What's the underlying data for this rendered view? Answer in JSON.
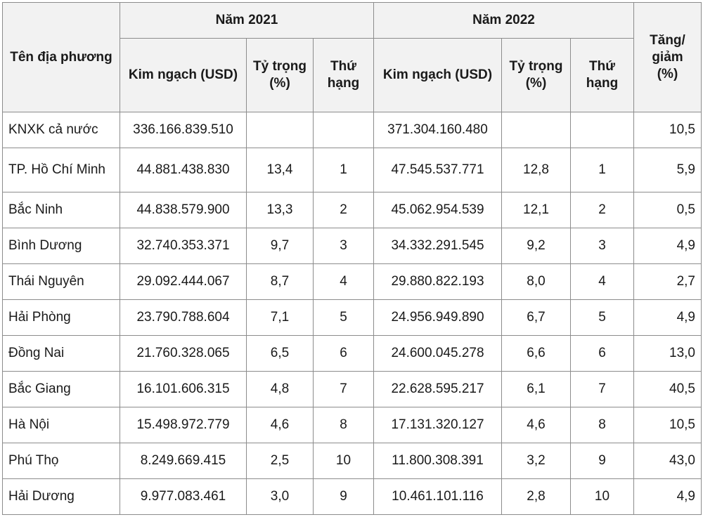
{
  "header": {
    "region_label": "Tên địa phương",
    "year1": "Năm 2021",
    "year2": "Năm 2022",
    "change_label": "Tăng/ giảm (%)",
    "turnover_label": "Kim ngạch (USD)",
    "share_label": "Tỷ trọng (%)",
    "rank_label": "Thứ hạng"
  },
  "rows": [
    {
      "name": "KNXK cả nước",
      "v2021": "336.166.839.510",
      "s2021": "",
      "r2021": "",
      "v2022": "371.304.160.480",
      "s2022": "",
      "r2022": "",
      "change": "10,5"
    },
    {
      "name": "TP. Hồ Chí Minh",
      "v2021": "44.881.438.830",
      "s2021": "13,4",
      "r2021": "1",
      "v2022": "47.545.537.771",
      "s2022": "12,8",
      "r2022": "1",
      "change": "5,9"
    },
    {
      "name": "Bắc Ninh",
      "v2021": "44.838.579.900",
      "s2021": "13,3",
      "r2021": "2",
      "v2022": "45.062.954.539",
      "s2022": "12,1",
      "r2022": "2",
      "change": "0,5"
    },
    {
      "name": "Bình Dương",
      "v2021": "32.740.353.371",
      "s2021": "9,7",
      "r2021": "3",
      "v2022": "34.332.291.545",
      "s2022": "9,2",
      "r2022": "3",
      "change": "4,9"
    },
    {
      "name": "Thái Nguyên",
      "v2021": "29.092.444.067",
      "s2021": "8,7",
      "r2021": "4",
      "v2022": "29.880.822.193",
      "s2022": "8,0",
      "r2022": "4",
      "change": "2,7"
    },
    {
      "name": "Hải Phòng",
      "v2021": "23.790.788.604",
      "s2021": "7,1",
      "r2021": "5",
      "v2022": "24.956.949.890",
      "s2022": "6,7",
      "r2022": "5",
      "change": "4,9"
    },
    {
      "name": "Đồng Nai",
      "v2021": "21.760.328.065",
      "s2021": "6,5",
      "r2021": "6",
      "v2022": "24.600.045.278",
      "s2022": "6,6",
      "r2022": "6",
      "change": "13,0"
    },
    {
      "name": "Bắc Giang",
      "v2021": "16.101.606.315",
      "s2021": "4,8",
      "r2021": "7",
      "v2022": "22.628.595.217",
      "s2022": "6,1",
      "r2022": "7",
      "change": "40,5"
    },
    {
      "name": "Hà Nội",
      "v2021": "15.498.972.779",
      "s2021": "4,6",
      "r2021": "8",
      "v2022": "17.131.320.127",
      "s2022": "4,6",
      "r2022": "8",
      "change": "10,5"
    },
    {
      "name": "Phú Thọ",
      "v2021": "8.249.669.415",
      "s2021": "2,5",
      "r2021": "10",
      "v2022": "11.800.308.391",
      "s2022": "3,2",
      "r2022": "9",
      "change": "43,0"
    },
    {
      "name": "Hải Dương",
      "v2021": "9.977.083.461",
      "s2021": "3,0",
      "r2021": "9",
      "v2022": "10.461.101.116",
      "s2022": "2,8",
      "r2022": "10",
      "change": "4,9"
    }
  ]
}
